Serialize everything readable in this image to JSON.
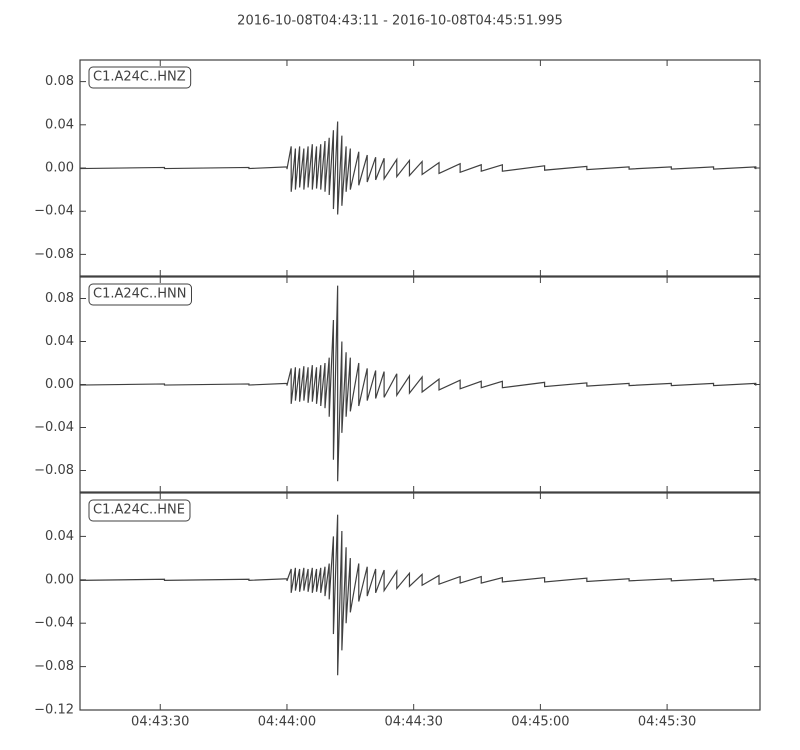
{
  "chart_data": [
    {
      "type": "line",
      "title": "2016-10-08T04:43:11  -  2016-10-08T04:45:51.995",
      "x": [
        0,
        0,
        20,
        20,
        40,
        40,
        49,
        49,
        50,
        50,
        51,
        51,
        52,
        52,
        53,
        53,
        54,
        54,
        55,
        55,
        56,
        56,
        57,
        57,
        58,
        58,
        59,
        59,
        60,
        60,
        61,
        61,
        62,
        62,
        63,
        63,
        64,
        64,
        66,
        66,
        68,
        68,
        70,
        70,
        72,
        72,
        75,
        75,
        78,
        78,
        81,
        81,
        85,
        85,
        90,
        90,
        95,
        95,
        100,
        100,
        110,
        110,
        120,
        120,
        130,
        130,
        140,
        140,
        150,
        150,
        160,
        160
      ],
      "series": [
        {
          "name": "C1.A24C..HNZ",
          "color": "#404040",
          "values": [
            0.0005,
            -0.0005,
            0.0005,
            -0.0005,
            0.0005,
            -0.0005,
            0.001,
            -0.001,
            0.02,
            -0.022,
            0.018,
            -0.02,
            0.02,
            -0.018,
            0.018,
            -0.02,
            0.02,
            -0.018,
            0.022,
            -0.02,
            0.02,
            -0.019,
            0.022,
            -0.02,
            0.025,
            -0.022,
            0.028,
            -0.025,
            0.035,
            -0.038,
            0.043,
            -0.043,
            0.03,
            -0.035,
            0.02,
            -0.022,
            0.018,
            -0.02,
            0.015,
            -0.016,
            0.012,
            -0.013,
            0.01,
            -0.011,
            0.009,
            -0.01,
            0.008,
            -0.008,
            0.007,
            -0.007,
            0.006,
            -0.006,
            0.005,
            -0.005,
            0.004,
            -0.004,
            0.003,
            -0.003,
            0.003,
            -0.003,
            0.002,
            -0.002,
            0.0015,
            -0.0015,
            0.001,
            -0.001,
            0.001,
            -0.001,
            0.001,
            -0.001,
            0.001,
            -0.001
          ]
        }
      ],
      "xlim": [
        0,
        160.995
      ],
      "ylim": [
        -0.1,
        0.1
      ],
      "yticks": [
        {
          "value": 0.08,
          "label": "0.08"
        },
        {
          "value": 0.04,
          "label": "0.04"
        },
        {
          "value": 0,
          "label": "0.00"
        },
        {
          "value": -0.04,
          "label": "−0.04"
        },
        {
          "value": -0.08,
          "label": "−0.08"
        }
      ]
    },
    {
      "type": "line",
      "x": [
        0,
        0,
        20,
        20,
        40,
        40,
        49,
        49,
        50,
        50,
        51,
        51,
        52,
        52,
        53,
        53,
        54,
        54,
        55,
        55,
        56,
        56,
        57,
        57,
        58,
        58,
        59,
        59,
        60,
        60,
        61,
        61,
        62,
        62,
        63,
        63,
        64,
        64,
        66,
        66,
        68,
        68,
        70,
        70,
        72,
        72,
        75,
        75,
        78,
        78,
        81,
        81,
        85,
        85,
        90,
        90,
        95,
        95,
        100,
        100,
        110,
        110,
        120,
        120,
        130,
        130,
        140,
        140,
        150,
        150,
        160,
        160
      ],
      "series": [
        {
          "name": "C1.A24C..HNN",
          "color": "#404040",
          "values": [
            0.0005,
            -0.0005,
            0.0005,
            -0.0005,
            0.0005,
            -0.0005,
            0.001,
            -0.001,
            0.015,
            -0.018,
            0.016,
            -0.015,
            0.015,
            -0.016,
            0.017,
            -0.015,
            0.016,
            -0.017,
            0.018,
            -0.016,
            0.016,
            -0.018,
            0.018,
            -0.02,
            0.02,
            -0.022,
            0.025,
            -0.03,
            0.06,
            -0.07,
            0.092,
            -0.09,
            0.04,
            -0.045,
            0.03,
            -0.03,
            0.025,
            -0.025,
            0.02,
            -0.02,
            0.015,
            -0.015,
            0.013,
            -0.013,
            0.012,
            -0.012,
            0.01,
            -0.01,
            0.008,
            -0.008,
            0.007,
            -0.007,
            0.005,
            -0.005,
            0.004,
            -0.004,
            0.003,
            -0.003,
            0.003,
            -0.003,
            0.002,
            -0.002,
            0.0015,
            -0.0015,
            0.001,
            -0.001,
            0.001,
            -0.001,
            0.001,
            -0.001,
            0.001,
            -0.001
          ]
        }
      ],
      "xlim": [
        0,
        160.995
      ],
      "ylim": [
        -0.1,
        0.1
      ],
      "yticks": [
        {
          "value": 0.08,
          "label": "0.08"
        },
        {
          "value": 0.04,
          "label": "0.04"
        },
        {
          "value": 0,
          "label": "0.00"
        },
        {
          "value": -0.04,
          "label": "−0.04"
        },
        {
          "value": -0.08,
          "label": "−0.08"
        }
      ]
    },
    {
      "type": "line",
      "x": [
        0,
        0,
        20,
        20,
        40,
        40,
        49,
        49,
        50,
        50,
        51,
        51,
        52,
        52,
        53,
        53,
        54,
        54,
        55,
        55,
        56,
        56,
        57,
        57,
        58,
        58,
        59,
        59,
        60,
        60,
        61,
        61,
        62,
        62,
        63,
        63,
        64,
        64,
        66,
        66,
        68,
        68,
        70,
        70,
        72,
        72,
        75,
        75,
        78,
        78,
        81,
        81,
        85,
        85,
        90,
        90,
        95,
        95,
        100,
        100,
        110,
        110,
        120,
        120,
        130,
        130,
        140,
        140,
        150,
        150,
        160,
        160
      ],
      "series": [
        {
          "name": "C1.A24C..HNE",
          "color": "#404040",
          "values": [
            0.0005,
            -0.0005,
            0.0005,
            -0.0005,
            0.0005,
            -0.0005,
            0.001,
            -0.001,
            0.01,
            -0.012,
            0.011,
            -0.01,
            0.01,
            -0.011,
            0.011,
            -0.01,
            0.01,
            -0.011,
            0.011,
            -0.012,
            0.01,
            -0.011,
            0.011,
            -0.012,
            0.012,
            -0.015,
            0.015,
            -0.018,
            0.04,
            -0.05,
            0.06,
            -0.088,
            0.045,
            -0.065,
            0.03,
            -0.04,
            0.02,
            -0.03,
            0.015,
            -0.02,
            0.012,
            -0.015,
            0.01,
            -0.012,
            0.009,
            -0.01,
            0.008,
            -0.008,
            0.006,
            -0.006,
            0.005,
            -0.005,
            0.004,
            -0.004,
            0.003,
            -0.003,
            0.003,
            -0.003,
            0.002,
            -0.002,
            0.002,
            -0.002,
            0.0015,
            -0.0015,
            0.001,
            -0.001,
            0.001,
            -0.001,
            0.001,
            -0.001,
            0.001,
            -0.001
          ]
        }
      ],
      "xlim": [
        0,
        160.995
      ],
      "ylim": [
        -0.12,
        0.08
      ],
      "yticks": [
        {
          "value": 0.04,
          "label": "0.04"
        },
        {
          "value": 0,
          "label": "0.00"
        },
        {
          "value": -0.04,
          "label": "−0.04"
        },
        {
          "value": -0.08,
          "label": "−0.08"
        },
        {
          "value": -0.12,
          "label": "−0.12"
        }
      ],
      "xticks": [
        {
          "value": 19,
          "label": "04:43:30"
        },
        {
          "value": 49,
          "label": "04:44:00"
        },
        {
          "value": 79,
          "label": "04:44:30"
        },
        {
          "value": 109,
          "label": "04:45:00"
        },
        {
          "value": 139,
          "label": "04:45:30"
        }
      ]
    }
  ]
}
